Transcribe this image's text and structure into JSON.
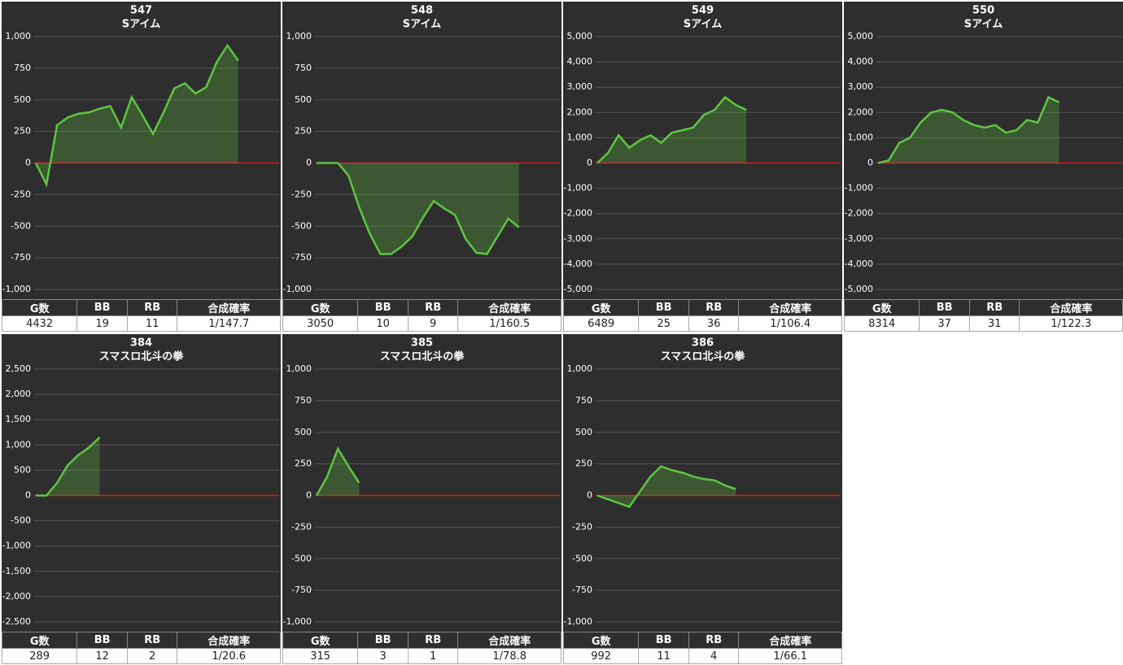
{
  "chart_data": [
    {
      "type": "line",
      "title": "547",
      "subtitle": "Sアイム",
      "series": [
        {
          "color": "#5ec542",
          "values": [
            0,
            -170,
            300,
            360,
            390,
            400,
            430,
            450,
            280,
            520,
            380,
            230,
            400,
            590,
            630,
            550,
            600,
            800,
            930,
            810
          ]
        }
      ],
      "ylim": [
        -1000,
        1000
      ],
      "yticks": [
        {
          "value": -1000,
          "label": "-1,000"
        },
        -750,
        -500,
        -250,
        0,
        250,
        500,
        750,
        {
          "value": 1000,
          "label": "1,000"
        }
      ],
      "grid": true,
      "stats": {
        "headers": [
          "G数",
          "BB",
          "RB",
          "合成確率"
        ],
        "values": [
          4432,
          19,
          11,
          "1/147.7"
        ]
      }
    },
    {
      "type": "line",
      "title": "548",
      "subtitle": "Sアイム",
      "series": [
        {
          "color": "#5ec542",
          "values": [
            0,
            0,
            0,
            -100,
            -350,
            -560,
            -720,
            -720,
            -660,
            -580,
            -430,
            -300,
            -360,
            -410,
            -600,
            -710,
            -720,
            -580,
            -440,
            -510
          ]
        }
      ],
      "ylim": [
        -1000,
        1000
      ],
      "yticks": [
        {
          "value": -1000,
          "label": "-1,000"
        },
        -750,
        -500,
        -250,
        0,
        250,
        500,
        750,
        {
          "value": 1000,
          "label": "1,000"
        }
      ],
      "grid": true,
      "stats": {
        "headers": [
          "G数",
          "BB",
          "RB",
          "合成確率"
        ],
        "values": [
          3050,
          10,
          9,
          "1/160.5"
        ]
      }
    },
    {
      "type": "line",
      "title": "549",
      "subtitle": "Sアイム",
      "series": [
        {
          "color": "#5ec542",
          "values": [
            0,
            400,
            1100,
            600,
            900,
            1100,
            800,
            1200,
            1300,
            1400,
            1900,
            2100,
            2600,
            2300,
            2100
          ]
        }
      ],
      "ylim": [
        -5000,
        5000
      ],
      "yticks": [
        {
          "value": -5000,
          "label": "-5,000"
        },
        {
          "value": -4000,
          "label": "-4,000"
        },
        {
          "value": -3000,
          "label": "-3,000"
        },
        {
          "value": -2000,
          "label": "-2,000"
        },
        {
          "value": -1000,
          "label": "-1,000"
        },
        0,
        {
          "value": 1000,
          "label": "1,000"
        },
        {
          "value": 2000,
          "label": "2,000"
        },
        {
          "value": 3000,
          "label": "3,000"
        },
        {
          "value": 4000,
          "label": "4,000"
        },
        {
          "value": 5000,
          "label": "5,000"
        }
      ],
      "grid": true,
      "stats": {
        "headers": [
          "G数",
          "BB",
          "RB",
          "合成確率"
        ],
        "values": [
          6489,
          25,
          36,
          "1/106.4"
        ]
      }
    },
    {
      "type": "line",
      "title": "550",
      "subtitle": "Sアイム",
      "series": [
        {
          "color": "#5ec542",
          "values": [
            0,
            100,
            800,
            1000,
            1600,
            2000,
            2100,
            2000,
            1700,
            1500,
            1400,
            1500,
            1200,
            1300,
            1700,
            1600,
            2600,
            2400
          ]
        }
      ],
      "ylim": [
        -5000,
        5000
      ],
      "yticks": [
        {
          "value": -5000,
          "label": "-5,000"
        },
        {
          "value": -4000,
          "label": "-4,000"
        },
        {
          "value": -3000,
          "label": "-3,000"
        },
        {
          "value": -2000,
          "label": "-2,000"
        },
        {
          "value": -1000,
          "label": "-1,000"
        },
        0,
        {
          "value": 1000,
          "label": "1,000"
        },
        {
          "value": 2000,
          "label": "2,000"
        },
        {
          "value": 3000,
          "label": "3,000"
        },
        {
          "value": 4000,
          "label": "4,000"
        },
        {
          "value": 5000,
          "label": "5,000"
        }
      ],
      "grid": true,
      "stats": {
        "headers": [
          "G数",
          "BB",
          "RB",
          "合成確率"
        ],
        "values": [
          8314,
          37,
          31,
          "1/122.3"
        ]
      }
    },
    {
      "type": "line",
      "title": "384",
      "subtitle": "スマスロ北斗の拳",
      "series": [
        {
          "color": "#5ec542",
          "values": [
            0,
            0,
            250,
            600,
            800,
            950,
            1150
          ]
        }
      ],
      "ylim": [
        -2500,
        2500
      ],
      "yticks": [
        {
          "value": -2500,
          "label": "-2,500"
        },
        {
          "value": -2000,
          "label": "-2,000"
        },
        {
          "value": -1500,
          "label": "-1,500"
        },
        {
          "value": -1000,
          "label": "-1,000"
        },
        -500,
        0,
        500,
        {
          "value": 1000,
          "label": "1,000"
        },
        {
          "value": 1500,
          "label": "1,500"
        },
        {
          "value": 2000,
          "label": "2,000"
        },
        {
          "value": 2500,
          "label": "2,500"
        }
      ],
      "grid": true,
      "stats": {
        "headers": [
          "G数",
          "BB",
          "RB",
          "合成確率"
        ],
        "values": [
          289,
          12,
          2,
          "1/20.6"
        ]
      }
    },
    {
      "type": "line",
      "title": "385",
      "subtitle": "スマスロ北斗の拳",
      "series": [
        {
          "color": "#5ec542",
          "values": [
            0,
            150,
            370,
            230,
            100
          ]
        }
      ],
      "ylim": [
        -1000,
        1000
      ],
      "yticks": [
        {
          "value": -1000,
          "label": "-1,000"
        },
        -750,
        -500,
        -250,
        0,
        250,
        500,
        750,
        {
          "value": 1000,
          "label": "1,000"
        }
      ],
      "grid": true,
      "stats": {
        "headers": [
          "G数",
          "BB",
          "RB",
          "合成確率"
        ],
        "values": [
          315,
          3,
          1,
          "1/78.8"
        ]
      }
    },
    {
      "type": "line",
      "title": "386",
      "subtitle": "スマスロ北斗の拳",
      "series": [
        {
          "color": "#5ec542",
          "values": [
            0,
            -30,
            -60,
            -90,
            30,
            150,
            230,
            200,
            180,
            150,
            130,
            120,
            80,
            50
          ]
        }
      ],
      "ylim": [
        -1000,
        1000
      ],
      "yticks": [
        {
          "value": -1000,
          "label": "-1,000"
        },
        -750,
        -500,
        -250,
        0,
        250,
        500,
        750,
        {
          "value": 1000,
          "label": "1,000"
        }
      ],
      "grid": true,
      "stats": {
        "headers": [
          "G数",
          "BB",
          "RB",
          "合成確率"
        ],
        "values": [
          992,
          11,
          4,
          "1/66.1"
        ]
      }
    }
  ]
}
